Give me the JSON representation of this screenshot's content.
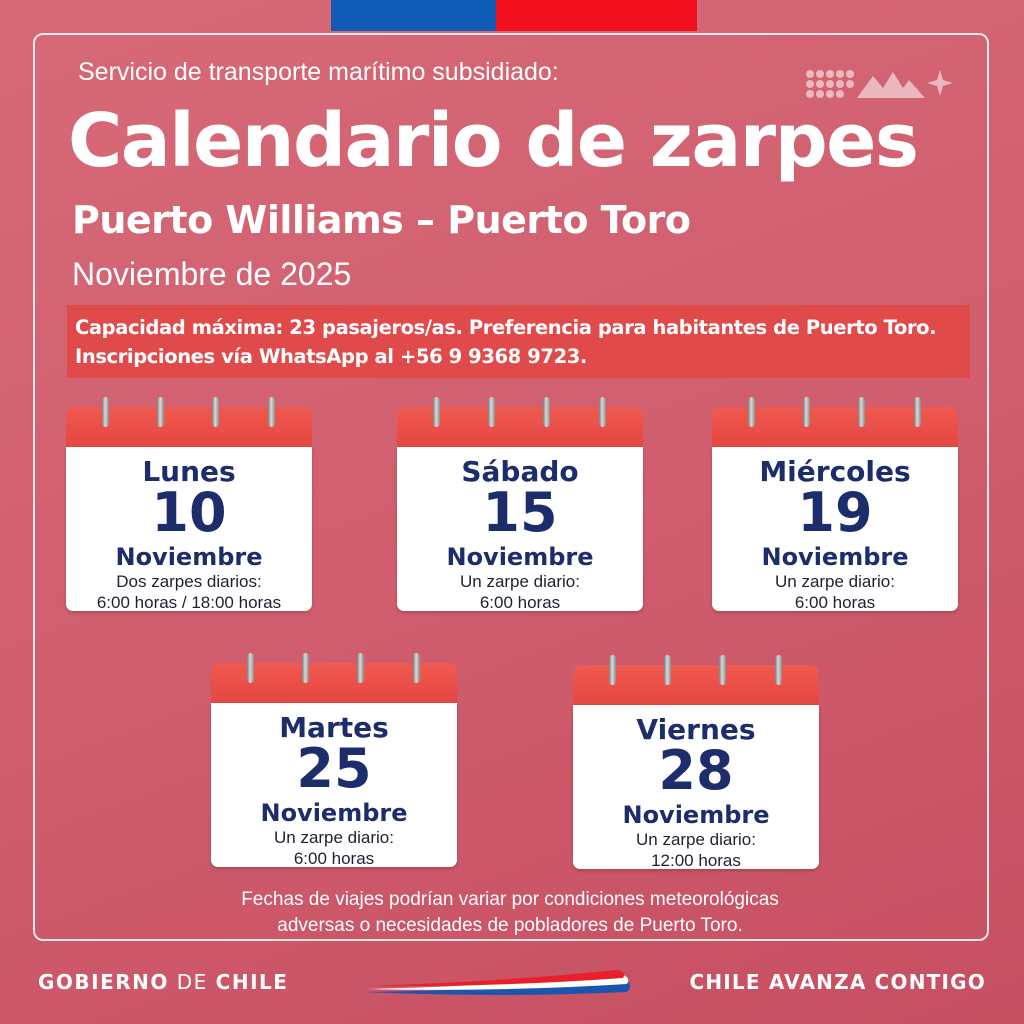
{
  "header": {
    "subtitle": "Servicio de transporte marítimo subsidiado:",
    "title": "Calendario de zarpes",
    "route": "Puerto Williams – Puerto Toro",
    "month": "Noviembre de 2025"
  },
  "notice": {
    "line1": "Capacidad máxima: 23 pasajeros/as. Preferencia para habitantes de Puerto Toro.",
    "line2": "Inscripciones vía WhatsApp al +56 9 9368 9723."
  },
  "calendars": [
    {
      "day": "Lunes",
      "number": "10",
      "month": "Noviembre",
      "info1": "Dos zarpes diarios:",
      "info2": "6:00 horas / 18:00 horas"
    },
    {
      "day": "Sábado",
      "number": "15",
      "month": "Noviembre",
      "info1": "Un zarpe diario:",
      "info2": "6:00 horas"
    },
    {
      "day": "Miércoles",
      "number": "19",
      "month": "Noviembre",
      "info1": "Un zarpe diario:",
      "info2": "6:00 horas"
    },
    {
      "day": "Martes",
      "number": "25",
      "month": "Noviembre",
      "info1": "Un zarpe diario:",
      "info2": "6:00 horas"
    },
    {
      "day": "Viernes",
      "number": "28",
      "month": "Noviembre",
      "info1": "Un zarpe diario:",
      "info2": "12:00 horas"
    }
  ],
  "footnote": {
    "line1": "Fechas de viajes podrían variar por condiciones meteorológicas",
    "line2": "adversas o necesidades de pobladores de Puerto Toro."
  },
  "footer": {
    "gob_part1": "GOBIERNO",
    "gob_part2": "DE",
    "gob_part3": "CHILE",
    "slogan": "CHILE AVANZA CONTIGO"
  },
  "colors": {
    "background": "#d05f6e",
    "flag_blue": "#0f5bb5",
    "flag_red": "#f0101e",
    "notice_bg": "#e04a4a",
    "calendar_text": "#1d2d6b"
  }
}
